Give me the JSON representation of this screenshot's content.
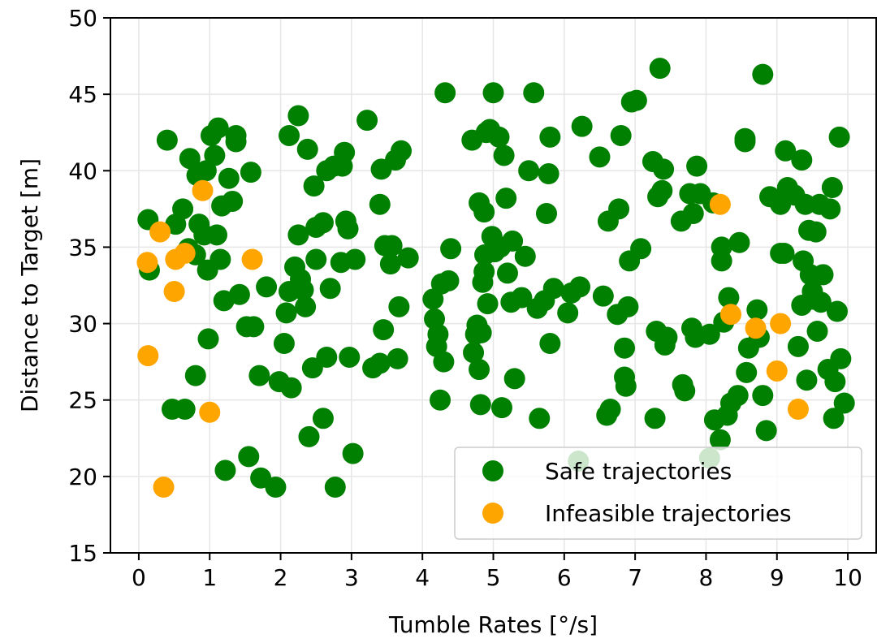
{
  "chart_data": {
    "type": "scatter",
    "title": "",
    "xlabel": "Tumble Rates [°/s]",
    "ylabel": "Distance to Target [m]",
    "xlim": [
      -0.4,
      10.4
    ],
    "ylim": [
      15,
      50
    ],
    "xticks": [
      "0",
      "1",
      "2",
      "3",
      "4",
      "5",
      "6",
      "7",
      "8",
      "9",
      "10"
    ],
    "yticks": [
      "15",
      "20",
      "25",
      "30",
      "35",
      "40",
      "45",
      "50"
    ],
    "grid": true,
    "legend_position": "lower-right",
    "series": [
      {
        "name": "Safe trajectories",
        "color": "#008000",
        "points": [
          [
            0.13,
            36.8
          ],
          [
            0.15,
            33.5
          ],
          [
            0.4,
            42.0
          ],
          [
            0.47,
            24.4
          ],
          [
            0.52,
            36.5
          ],
          [
            0.62,
            37.5
          ],
          [
            0.65,
            24.4
          ],
          [
            0.7,
            34.9
          ],
          [
            0.72,
            40.8
          ],
          [
            0.8,
            34.5
          ],
          [
            0.8,
            26.6
          ],
          [
            0.82,
            39.7
          ],
          [
            0.85,
            36.5
          ],
          [
            0.92,
            35.8
          ],
          [
            0.95,
            40.0
          ],
          [
            0.98,
            29.0
          ],
          [
            0.97,
            33.5
          ],
          [
            1.02,
            42.3
          ],
          [
            1.07,
            41.0
          ],
          [
            1.1,
            35.8
          ],
          [
            1.12,
            42.8
          ],
          [
            1.15,
            34.2
          ],
          [
            1.17,
            37.7
          ],
          [
            1.2,
            31.5
          ],
          [
            1.22,
            20.4
          ],
          [
            1.27,
            39.5
          ],
          [
            1.32,
            38.0
          ],
          [
            1.37,
            41.9
          ],
          [
            1.37,
            42.3
          ],
          [
            1.42,
            31.9
          ],
          [
            1.52,
            29.8
          ],
          [
            1.55,
            21.3
          ],
          [
            1.58,
            39.9
          ],
          [
            1.62,
            29.8
          ],
          [
            1.7,
            26.6
          ],
          [
            1.72,
            19.9
          ],
          [
            1.8,
            32.4
          ],
          [
            1.93,
            19.3
          ],
          [
            1.98,
            26.2
          ],
          [
            2.05,
            28.7
          ],
          [
            2.08,
            30.7
          ],
          [
            2.12,
            32.1
          ],
          [
            2.12,
            42.3
          ],
          [
            2.15,
            25.8
          ],
          [
            2.2,
            33.7
          ],
          [
            2.25,
            43.6
          ],
          [
            2.25,
            35.8
          ],
          [
            2.28,
            32.9
          ],
          [
            2.32,
            32.2
          ],
          [
            2.35,
            31.1
          ],
          [
            2.38,
            41.4
          ],
          [
            2.4,
            22.6
          ],
          [
            2.45,
            27.1
          ],
          [
            2.47,
            39.0
          ],
          [
            2.5,
            36.3
          ],
          [
            2.5,
            34.2
          ],
          [
            2.6,
            23.8
          ],
          [
            2.6,
            36.6
          ],
          [
            2.65,
            27.8
          ],
          [
            2.65,
            40.0
          ],
          [
            2.7,
            32.3
          ],
          [
            2.75,
            40.3
          ],
          [
            2.77,
            19.3
          ],
          [
            2.85,
            34.0
          ],
          [
            2.87,
            40.3
          ],
          [
            2.9,
            41.2
          ],
          [
            2.92,
            36.7
          ],
          [
            2.95,
            36.2
          ],
          [
            2.97,
            27.8
          ],
          [
            3.02,
            21.5
          ],
          [
            3.05,
            34.2
          ],
          [
            3.22,
            43.3
          ],
          [
            3.3,
            27.1
          ],
          [
            3.4,
            37.8
          ],
          [
            3.4,
            27.4
          ],
          [
            3.42,
            40.1
          ],
          [
            3.45,
            29.6
          ],
          [
            3.47,
            35.1
          ],
          [
            3.55,
            33.9
          ],
          [
            3.57,
            35.1
          ],
          [
            3.62,
            40.7
          ],
          [
            3.65,
            27.7
          ],
          [
            3.67,
            31.1
          ],
          [
            3.7,
            41.3
          ],
          [
            3.8,
            34.3
          ],
          [
            4.15,
            31.6
          ],
          [
            4.17,
            30.3
          ],
          [
            4.2,
            28.5
          ],
          [
            4.22,
            29.3
          ],
          [
            4.25,
            25.0
          ],
          [
            4.27,
            32.6
          ],
          [
            4.3,
            27.5
          ],
          [
            4.32,
            45.1
          ],
          [
            4.37,
            32.8
          ],
          [
            4.4,
            34.9
          ],
          [
            4.7,
            42.0
          ],
          [
            4.72,
            28.1
          ],
          [
            4.75,
            29.3
          ],
          [
            4.77,
            29.9
          ],
          [
            4.8,
            27.0
          ],
          [
            4.8,
            37.9
          ],
          [
            4.82,
            24.7
          ],
          [
            4.83,
            29.4
          ],
          [
            4.85,
            32.7
          ],
          [
            4.87,
            37.3
          ],
          [
            4.87,
            33.4
          ],
          [
            4.88,
            34.5
          ],
          [
            4.9,
            42.5
          ],
          [
            4.92,
            31.3
          ],
          [
            4.95,
            42.7
          ],
          [
            4.98,
            35.7
          ],
          [
            5.0,
            45.1
          ],
          [
            5.02,
            34.7
          ],
          [
            5.05,
            34.9
          ],
          [
            5.08,
            42.2
          ],
          [
            5.1,
            35.0
          ],
          [
            5.12,
            24.5
          ],
          [
            5.15,
            41.0
          ],
          [
            5.18,
            38.2
          ],
          [
            5.2,
            33.3
          ],
          [
            5.25,
            31.4
          ],
          [
            5.27,
            35.4
          ],
          [
            5.3,
            26.4
          ],
          [
            5.4,
            31.7
          ],
          [
            5.45,
            34.4
          ],
          [
            5.5,
            40.0
          ],
          [
            5.57,
            45.1
          ],
          [
            5.62,
            31.0
          ],
          [
            5.65,
            23.8
          ],
          [
            5.72,
            31.5
          ],
          [
            5.75,
            37.2
          ],
          [
            5.78,
            39.8
          ],
          [
            5.8,
            28.7
          ],
          [
            5.8,
            42.2
          ],
          [
            5.85,
            32.3
          ],
          [
            6.05,
            30.7
          ],
          [
            6.1,
            32.0
          ],
          [
            6.2,
            21.0
          ],
          [
            6.22,
            32.4
          ],
          [
            6.25,
            42.9
          ],
          [
            6.5,
            40.9
          ],
          [
            6.55,
            31.8
          ],
          [
            6.6,
            24.0
          ],
          [
            6.62,
            36.7
          ],
          [
            6.65,
            24.4
          ],
          [
            6.75,
            30.6
          ],
          [
            6.77,
            37.5
          ],
          [
            6.8,
            42.3
          ],
          [
            6.85,
            28.4
          ],
          [
            6.85,
            26.5
          ],
          [
            6.87,
            25.9
          ],
          [
            6.9,
            31.1
          ],
          [
            6.92,
            34.1
          ],
          [
            6.95,
            44.5
          ],
          [
            7.02,
            44.6
          ],
          [
            7.08,
            34.9
          ],
          [
            7.25,
            40.6
          ],
          [
            7.28,
            23.8
          ],
          [
            7.3,
            29.5
          ],
          [
            7.32,
            38.3
          ],
          [
            7.35,
            46.7
          ],
          [
            7.38,
            38.7
          ],
          [
            7.4,
            40.1
          ],
          [
            7.42,
            28.6
          ],
          [
            7.45,
            29.1
          ],
          [
            7.65,
            36.7
          ],
          [
            7.67,
            26.0
          ],
          [
            7.7,
            25.6
          ],
          [
            7.77,
            38.5
          ],
          [
            7.8,
            29.7
          ],
          [
            7.82,
            37.2
          ],
          [
            7.85,
            29.1
          ],
          [
            7.87,
            40.3
          ],
          [
            7.92,
            38.5
          ],
          [
            8.05,
            21.2
          ],
          [
            8.05,
            29.3
          ],
          [
            8.1,
            37.9
          ],
          [
            8.12,
            23.7
          ],
          [
            8.2,
            22.4
          ],
          [
            8.22,
            35.0
          ],
          [
            8.22,
            34.1
          ],
          [
            8.25,
            30.1
          ],
          [
            8.3,
            24.0
          ],
          [
            8.32,
            31.7
          ],
          [
            8.35,
            24.8
          ],
          [
            8.45,
            25.3
          ],
          [
            8.47,
            35.3
          ],
          [
            8.55,
            41.9
          ],
          [
            8.55,
            42.1
          ],
          [
            8.57,
            26.8
          ],
          [
            8.6,
            28.4
          ],
          [
            8.72,
            30.9
          ],
          [
            8.75,
            29.1
          ],
          [
            8.8,
            25.3
          ],
          [
            8.8,
            46.3
          ],
          [
            8.85,
            23.0
          ],
          [
            8.9,
            38.3
          ],
          [
            9.05,
            34.6
          ],
          [
            9.05,
            37.8
          ],
          [
            9.1,
            34.6
          ],
          [
            9.12,
            41.3
          ],
          [
            9.15,
            38.9
          ],
          [
            9.25,
            38.4
          ],
          [
            9.3,
            28.5
          ],
          [
            9.35,
            40.7
          ],
          [
            9.35,
            31.2
          ],
          [
            9.37,
            34.1
          ],
          [
            9.4,
            37.8
          ],
          [
            9.42,
            26.3
          ],
          [
            9.45,
            36.1
          ],
          [
            9.47,
            33.2
          ],
          [
            9.5,
            31.6
          ],
          [
            9.5,
            32.1
          ],
          [
            9.55,
            36.0
          ],
          [
            9.57,
            29.5
          ],
          [
            9.6,
            37.8
          ],
          [
            9.62,
            31.4
          ],
          [
            9.65,
            33.2
          ],
          [
            9.72,
            27.0
          ],
          [
            9.75,
            37.5
          ],
          [
            9.78,
            38.9
          ],
          [
            9.8,
            23.8
          ],
          [
            9.82,
            26.2
          ],
          [
            9.85,
            30.8
          ],
          [
            9.88,
            42.2
          ],
          [
            9.9,
            27.7
          ],
          [
            9.95,
            24.8
          ]
        ]
      },
      {
        "name": "Infeasible trajectories",
        "color": "#FFA500",
        "points": [
          [
            0.12,
            34.0
          ],
          [
            0.13,
            27.9
          ],
          [
            0.3,
            36.0
          ],
          [
            0.35,
            19.3
          ],
          [
            0.5,
            32.1
          ],
          [
            0.52,
            34.2
          ],
          [
            0.65,
            34.6
          ],
          [
            0.9,
            38.7
          ],
          [
            1.0,
            24.2
          ],
          [
            1.6,
            34.2
          ],
          [
            8.2,
            37.8
          ],
          [
            8.35,
            30.6
          ],
          [
            8.7,
            29.7
          ],
          [
            9.0,
            26.9
          ],
          [
            9.05,
            30.0
          ],
          [
            9.3,
            24.4
          ]
        ]
      }
    ]
  }
}
